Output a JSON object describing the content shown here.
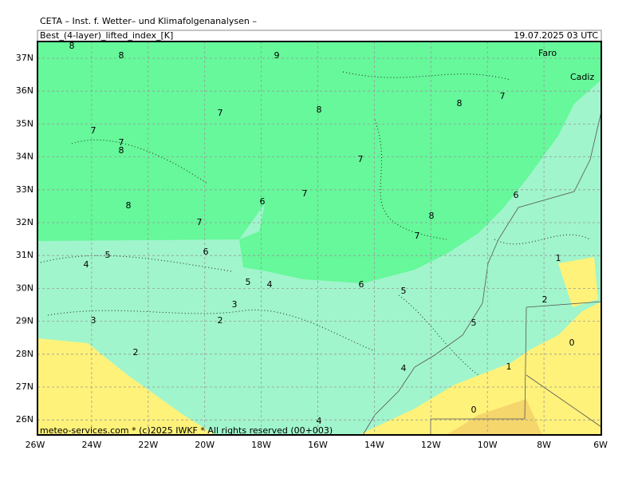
{
  "header": {
    "title": "CETA – Inst. f. Wetter– und Klimafolgenanalysen –",
    "product": "Best_(4-layer)_lifted_index_[K]",
    "valid_time": "19.07.2025 03 UTC"
  },
  "map": {
    "lon_labels": [
      "26W",
      "24W",
      "22W",
      "20W",
      "18W",
      "16W",
      "14W",
      "12W",
      "10W",
      "8W",
      "6W"
    ],
    "lat_labels": [
      "37N",
      "36N",
      "35N",
      "34N",
      "33N",
      "32N",
      "31N",
      "30N",
      "29N",
      "28N",
      "27N",
      "26N"
    ],
    "places": [
      "Faro",
      "Cadiz"
    ],
    "contour_labels": [
      "8",
      "8",
      "9",
      "8",
      "8",
      "7",
      "7",
      "7",
      "7",
      "8",
      "7",
      "7",
      "6",
      "6",
      "8",
      "7",
      "8",
      "7",
      "5",
      "4",
      "6",
      "1",
      "5",
      "4",
      "6",
      "5",
      "3",
      "2",
      "3",
      "2",
      "5",
      "0",
      "2",
      "4",
      "1",
      "0",
      "4"
    ]
  },
  "footer": "meteo-services.com * (c)2025 IWKF * All rights reserved (00+003)"
}
